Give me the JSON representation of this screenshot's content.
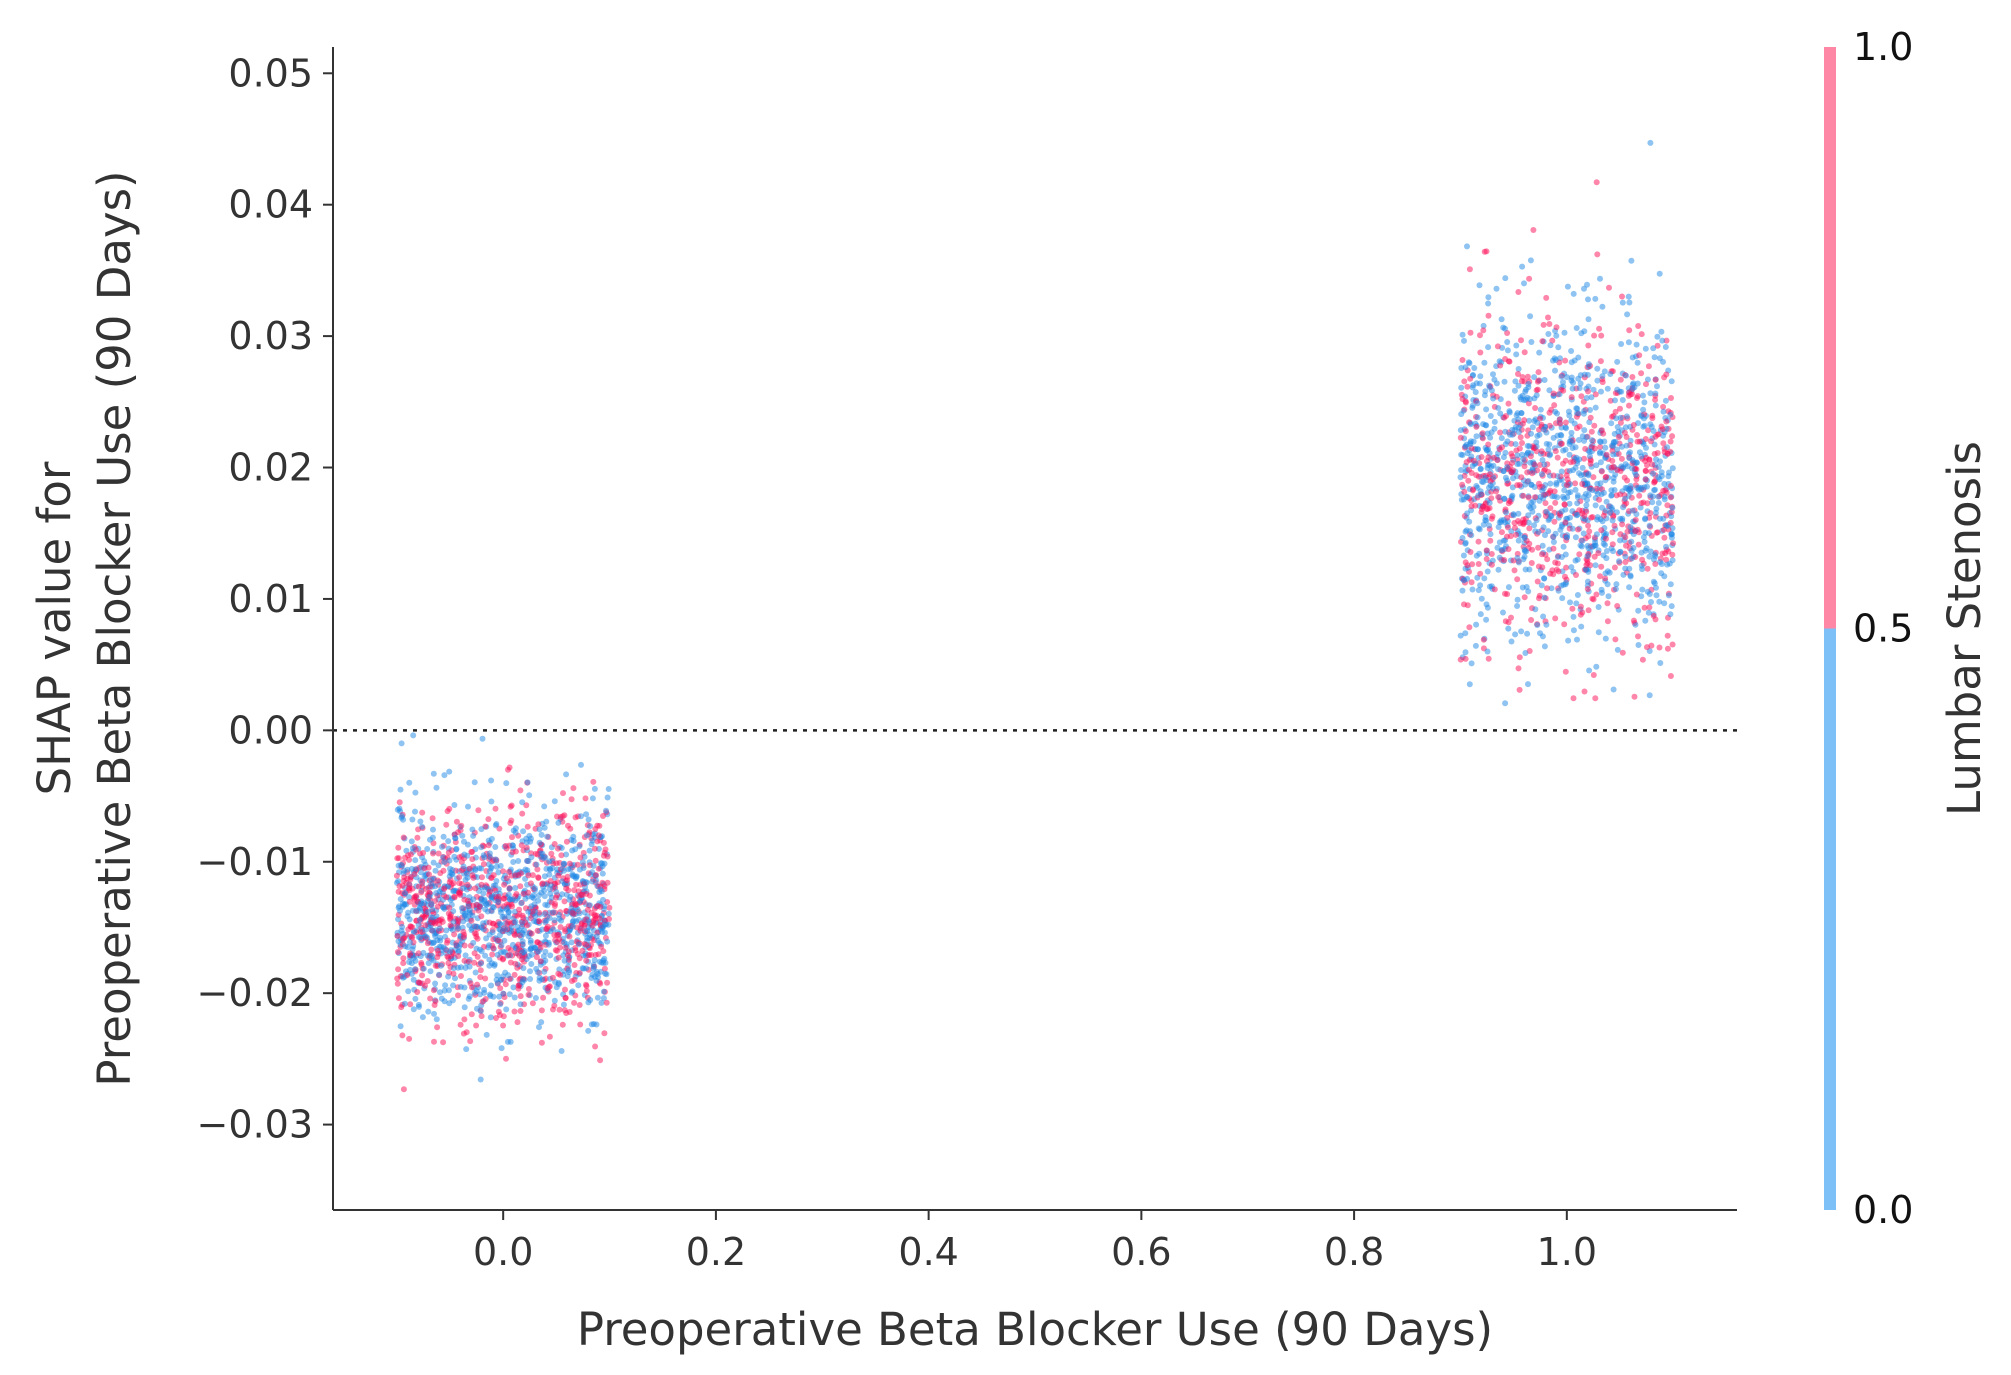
{
  "chart_data": {
    "type": "scatter",
    "title": "",
    "xlabel": "Preoperative Beta Blocker Use (90 Days)",
    "ylabel_lines": [
      "SHAP value for",
      "Preoperative Beta Blocker Use (90 Days)"
    ],
    "xlim": [
      -0.16,
      1.16
    ],
    "ylim": [
      -0.0365,
      0.052
    ],
    "x_ticks": [
      0.0,
      0.2,
      0.4,
      0.6,
      0.8,
      1.0
    ],
    "x_tick_labels": [
      "0.0",
      "0.2",
      "0.4",
      "0.6",
      "0.8",
      "1.0"
    ],
    "y_ticks": [
      -0.03,
      -0.02,
      -0.01,
      0.0,
      0.01,
      0.02,
      0.03,
      0.04,
      0.05
    ],
    "y_tick_labels": [
      "−0.03",
      "−0.02",
      "−0.01",
      "0.00",
      "0.01",
      "0.02",
      "0.03",
      "0.04",
      "0.05"
    ],
    "zero_line": 0.0,
    "grid": false,
    "groups": [
      {
        "x_center": 0.0,
        "jitter": 0.1,
        "y_mean": -0.014,
        "y_sd": 0.004,
        "y_min": -0.0325,
        "y_max": 0.0022,
        "count": 1800
      },
      {
        "x_center": 1.0,
        "jitter": 0.1,
        "y_mean": 0.019,
        "y_sd": 0.006,
        "y_min": 0.002,
        "y_max": 0.048,
        "count": 1700
      }
    ],
    "colorbar": {
      "label": "Lumbar Stenosis",
      "tick_labels": [
        "0.0",
        "0.5",
        "1.0"
      ],
      "low_color": "#7dc0f7",
      "high_color": "#ff87a6"
    },
    "point_colors": {
      "low": "#1e88e5",
      "high": "#ff0d57"
    }
  }
}
